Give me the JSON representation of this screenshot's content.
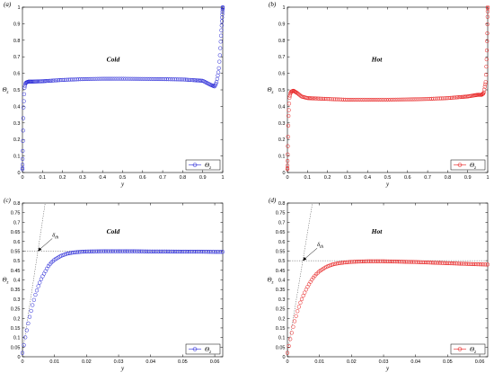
{
  "chart_data": [
    {
      "type": "scatter",
      "panel_label": "(a)",
      "title": "Cold",
      "xlabel": "y",
      "ylabel": "Θ",
      "ylabel_sub": "z",
      "xlim": [
        0,
        1
      ],
      "ylim": [
        0,
        1
      ],
      "xticks": [
        0,
        0.1,
        0.2,
        0.3,
        0.4,
        0.5,
        0.6,
        0.7,
        0.8,
        0.9,
        1
      ],
      "xtick_labels": [
        "0",
        "0.1",
        "0.2",
        "0.3",
        "0.4",
        "0.5",
        "0.6",
        "0.7",
        "0.8",
        "0.9",
        "1"
      ],
      "yticks": [
        0,
        0.1,
        0.2,
        0.3,
        0.4,
        0.5,
        0.6,
        0.7,
        0.8,
        0.9,
        1
      ],
      "ytick_labels": [
        "0",
        "0.1",
        "0.2",
        "0.3",
        "0.4",
        "0.5",
        "0.6",
        "0.7",
        "0.8",
        "0.9",
        "1"
      ],
      "legend": "bottom-right",
      "series": [
        {
          "name": "Θ",
          "name_sub": "z",
          "color": "#2a2ad8",
          "x": [
            0,
            0.002,
            0.005,
            0.01,
            0.015,
            0.02,
            0.03,
            0.05,
            0.1,
            0.2,
            0.3,
            0.4,
            0.5,
            0.6,
            0.7,
            0.8,
            0.9,
            0.94,
            0.96,
            0.97,
            0.98,
            0.985,
            0.99,
            0.995,
            1
          ],
          "y": [
            0.02,
            0.18,
            0.38,
            0.51,
            0.54,
            0.545,
            0.55,
            0.55,
            0.552,
            0.56,
            0.565,
            0.567,
            0.567,
            0.566,
            0.565,
            0.563,
            0.555,
            0.53,
            0.52,
            0.55,
            0.62,
            0.7,
            0.8,
            0.9,
            1.0
          ]
        }
      ]
    },
    {
      "type": "scatter",
      "panel_label": "(b)",
      "title": "Hot",
      "xlabel": "y",
      "ylabel": "Θ",
      "ylabel_sub": "z",
      "xlim": [
        0,
        1
      ],
      "ylim": [
        0,
        1
      ],
      "xticks": [
        0,
        0.1,
        0.2,
        0.3,
        0.4,
        0.5,
        0.6,
        0.7,
        0.8,
        0.9,
        1
      ],
      "xtick_labels": [
        "0",
        "0.1",
        "0.2",
        "0.3",
        "0.4",
        "0.5",
        "0.6",
        "0.7",
        "0.8",
        "0.9",
        "1"
      ],
      "yticks": [
        0,
        0.1,
        0.2,
        0.3,
        0.4,
        0.5,
        0.6,
        0.7,
        0.8,
        0.9,
        1
      ],
      "ytick_labels": [
        "0",
        "0.1",
        "0.2",
        "0.3",
        "0.4",
        "0.5",
        "0.6",
        "0.7",
        "0.8",
        "0.9",
        "1"
      ],
      "legend": "bottom-right",
      "series": [
        {
          "name": "Θ",
          "name_sub": "z",
          "color": "#e82020",
          "x": [
            0,
            0.002,
            0.005,
            0.01,
            0.015,
            0.02,
            0.03,
            0.05,
            0.07,
            0.1,
            0.2,
            0.3,
            0.4,
            0.5,
            0.6,
            0.7,
            0.8,
            0.9,
            0.95,
            0.97,
            0.98,
            0.99,
            0.995,
            0.998,
            1
          ],
          "y": [
            0.02,
            0.15,
            0.33,
            0.45,
            0.48,
            0.49,
            0.495,
            0.48,
            0.46,
            0.45,
            0.445,
            0.44,
            0.44,
            0.44,
            0.442,
            0.445,
            0.45,
            0.46,
            0.47,
            0.47,
            0.48,
            0.55,
            0.7,
            0.85,
            1.0
          ]
        }
      ]
    },
    {
      "type": "scatter",
      "panel_label": "(c)",
      "title": "Cold",
      "xlabel": "y",
      "ylabel": "Θ",
      "ylabel_sub": "z",
      "xlim": [
        0,
        0.0625
      ],
      "ylim": [
        0,
        0.8
      ],
      "xticks": [
        0,
        0.01,
        0.02,
        0.03,
        0.04,
        0.05,
        0.06
      ],
      "xtick_labels": [
        "0",
        "0.01",
        "0.02",
        "0.03",
        "0.04",
        "0.05",
        "0.06"
      ],
      "yticks": [
        0,
        0.05,
        0.1,
        0.15,
        0.2,
        0.25,
        0.3,
        0.35,
        0.4,
        0.45,
        0.5,
        0.55,
        0.6,
        0.65,
        0.7,
        0.75,
        0.8
      ],
      "ytick_labels": [
        "0",
        "0.05",
        "0.1",
        "0.15",
        "0.2",
        "0.25",
        "0.3",
        "0.35",
        "0.4",
        "0.45",
        "0.5",
        "0.55",
        "0.6",
        "0.65",
        "0.7",
        "0.75",
        "0.8"
      ],
      "legend": "bottom-right",
      "annotation": "δ",
      "annotation_sub": "th",
      "asymptote": 0.55,
      "tangent_slope": 110,
      "series": [
        {
          "name": "Θ",
          "name_sub": "z",
          "color": "#2a2ad8",
          "x": [
            0,
            0.001,
            0.002,
            0.003,
            0.004,
            0.005,
            0.006,
            0.007,
            0.008,
            0.009,
            0.01,
            0.012,
            0.014,
            0.016,
            0.018,
            0.02,
            0.025,
            0.03,
            0.035,
            0.04,
            0.045,
            0.05,
            0.055,
            0.06,
            0.0625
          ],
          "y": [
            0.02,
            0.11,
            0.19,
            0.26,
            0.32,
            0.37,
            0.41,
            0.44,
            0.47,
            0.49,
            0.505,
            0.525,
            0.537,
            0.543,
            0.546,
            0.548,
            0.549,
            0.549,
            0.549,
            0.548,
            0.548,
            0.547,
            0.547,
            0.546,
            0.546
          ]
        }
      ]
    },
    {
      "type": "scatter",
      "panel_label": "(d)",
      "title": "Hot",
      "xlabel": "y",
      "ylabel": "Θ",
      "ylabel_sub": "z",
      "xlim": [
        0,
        0.0625
      ],
      "ylim": [
        0,
        0.8
      ],
      "xticks": [
        0,
        0.01,
        0.02,
        0.03,
        0.04,
        0.05,
        0.06
      ],
      "xtick_labels": [
        "0",
        "0.01",
        "0.02",
        "0.03",
        "0.04",
        "0.05",
        "0.06"
      ],
      "yticks": [
        0,
        0.05,
        0.1,
        0.15,
        0.2,
        0.25,
        0.3,
        0.35,
        0.4,
        0.45,
        0.5,
        0.55,
        0.6,
        0.65,
        0.7,
        0.75,
        0.8
      ],
      "ytick_labels": [
        "0",
        "0.05",
        "0.1",
        "0.15",
        "0.2",
        "0.25",
        "0.3",
        "0.35",
        "0.4",
        "0.45",
        "0.5",
        "0.55",
        "0.6",
        "0.65",
        "0.7",
        "0.75",
        "0.8"
      ],
      "legend": "bottom-right",
      "annotation": "δ",
      "annotation_sub": "th",
      "asymptote": 0.5,
      "tangent_slope": 100,
      "series": [
        {
          "name": "Θ",
          "name_sub": "z",
          "color": "#e82020",
          "x": [
            0,
            0.001,
            0.002,
            0.003,
            0.004,
            0.005,
            0.006,
            0.007,
            0.008,
            0.009,
            0.01,
            0.012,
            0.014,
            0.016,
            0.018,
            0.02,
            0.025,
            0.03,
            0.035,
            0.04,
            0.045,
            0.05,
            0.055,
            0.06,
            0.0625
          ],
          "y": [
            0.02,
            0.1,
            0.17,
            0.23,
            0.28,
            0.32,
            0.355,
            0.385,
            0.41,
            0.43,
            0.445,
            0.467,
            0.48,
            0.487,
            0.491,
            0.494,
            0.497,
            0.497,
            0.495,
            0.493,
            0.49,
            0.487,
            0.484,
            0.481,
            0.48
          ]
        }
      ]
    }
  ]
}
